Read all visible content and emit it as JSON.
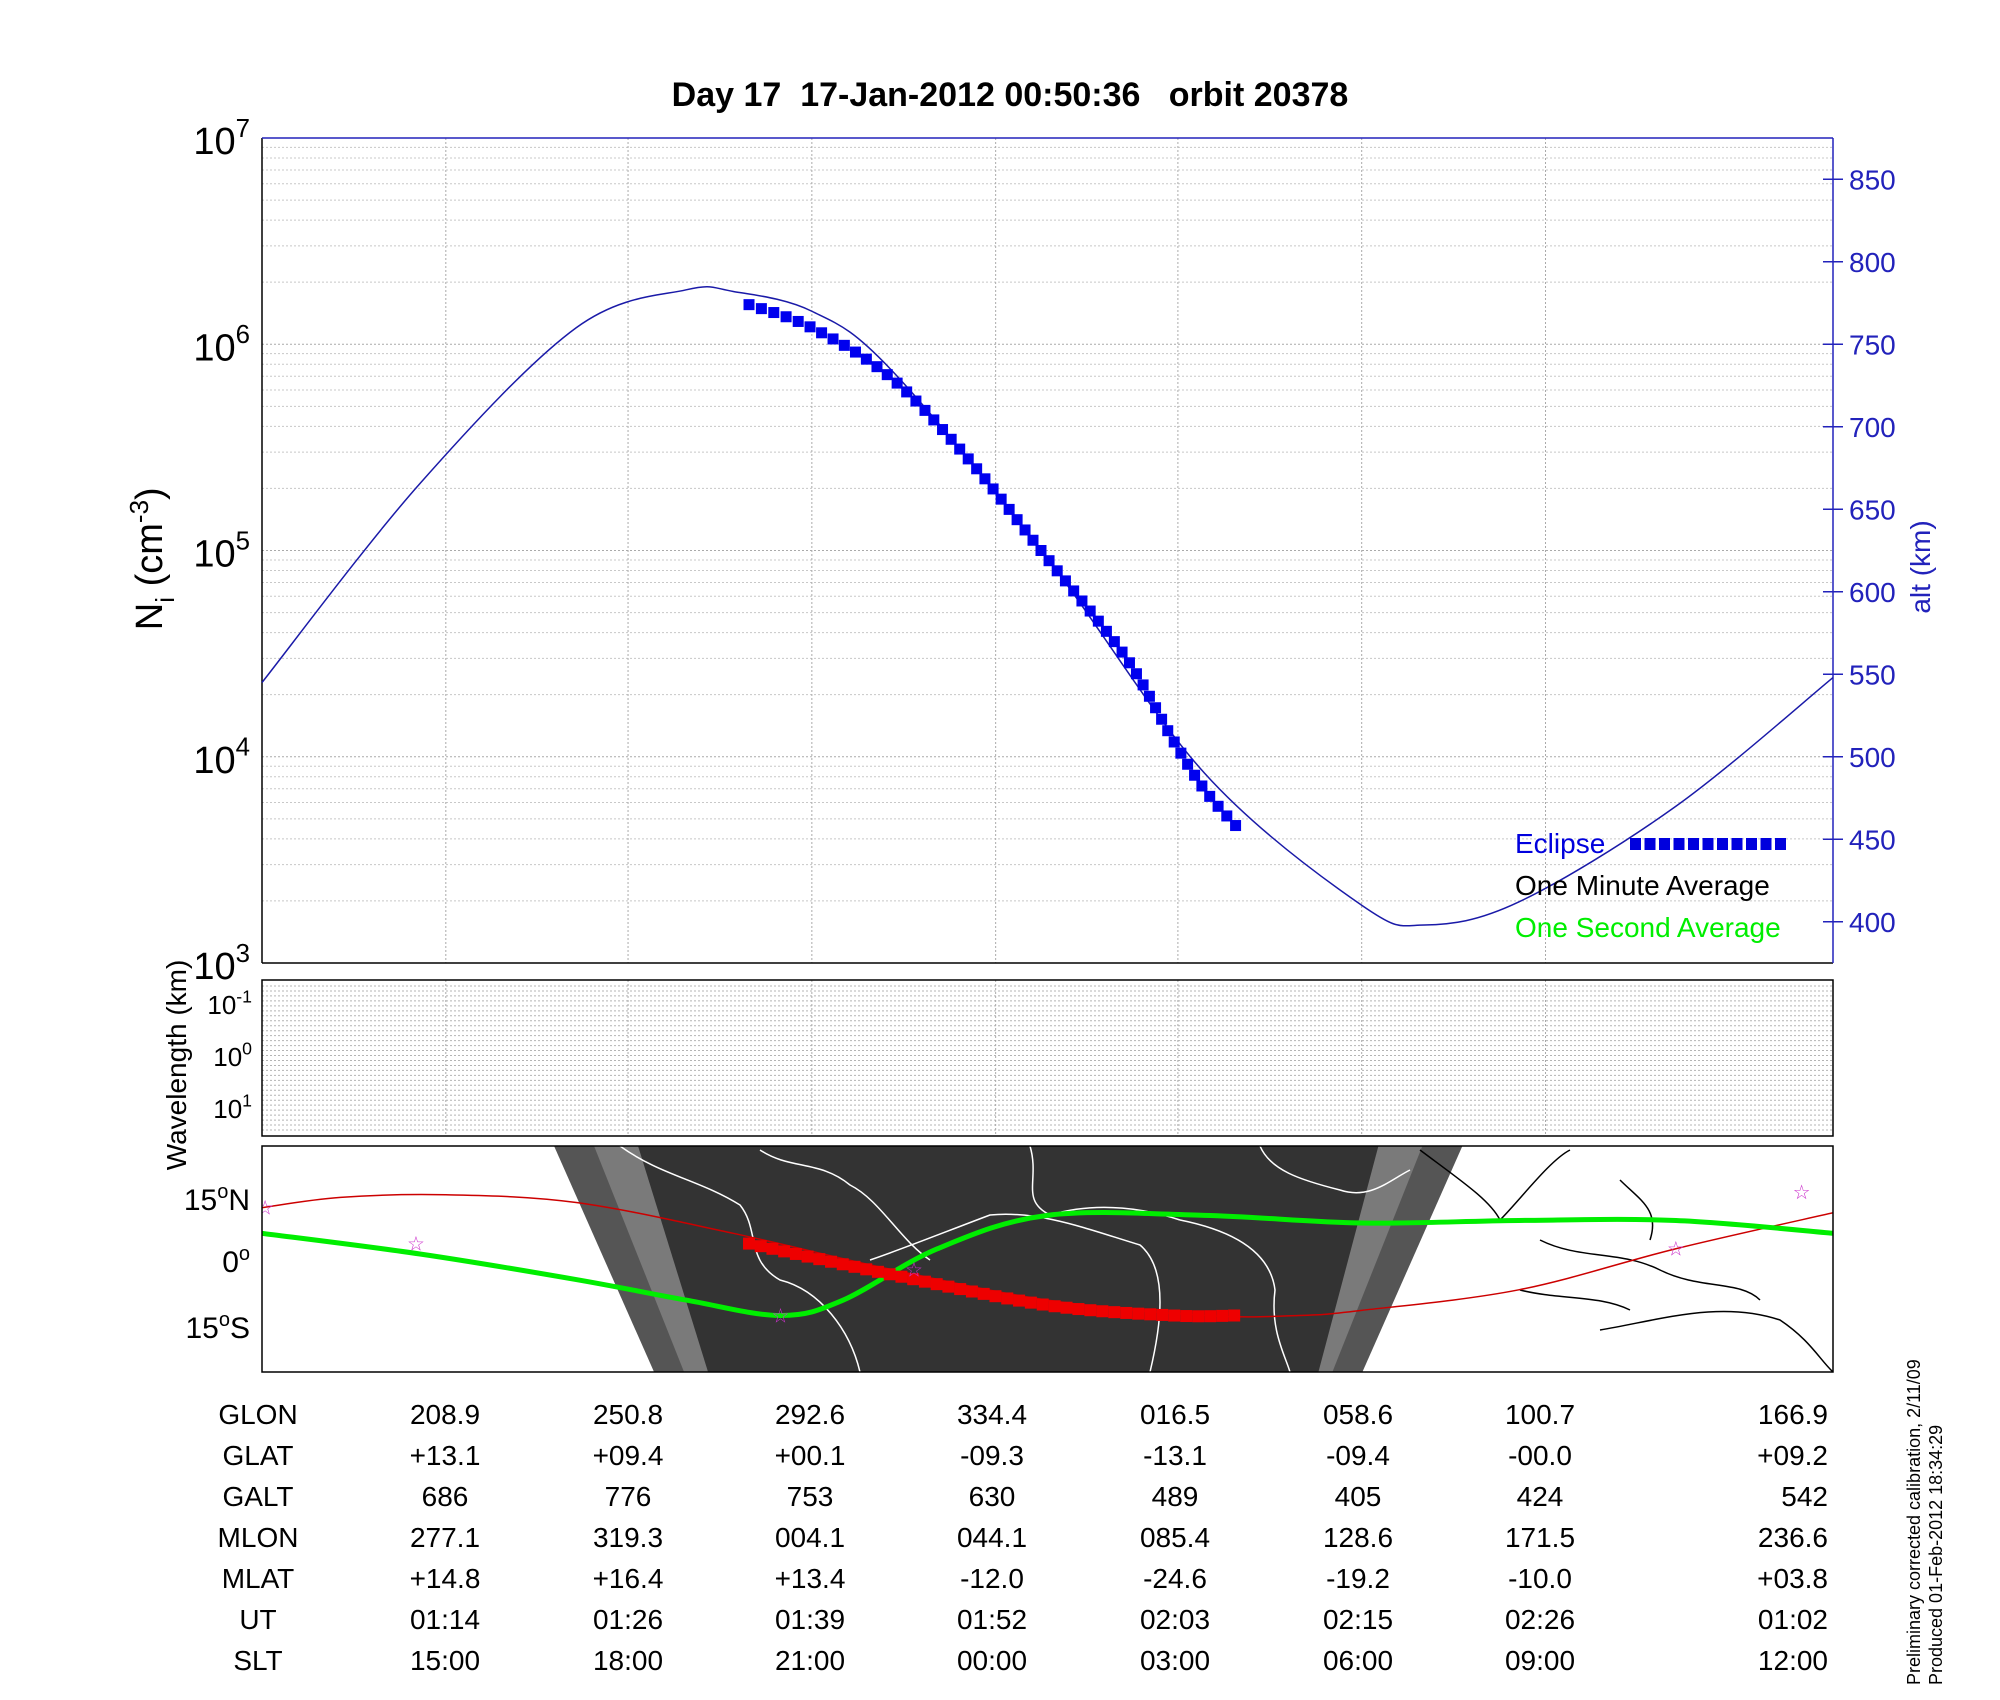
{
  "chart_data": {
    "title": "Day 17  17-Jan-2012 00:50:36   orbit 20378",
    "footnote": [
      "Preliminary corrected calibration, 2/11/09",
      "Produced 01-Feb-2012 18:34:29"
    ],
    "panels": [
      {
        "type": "line",
        "ylabel_left": "N",
        "ylabel_left_sub": "i",
        "ylabel_left_unit": "(cm",
        "ylabel_left_unit_sup": "-3",
        "ylabel_left_close": ")",
        "yscale_left": "log",
        "ylim_left": [
          1000,
          10000000
        ],
        "yticks_left": [
          {
            "base": "10",
            "exp": "3"
          },
          {
            "base": "10",
            "exp": "4"
          },
          {
            "base": "10",
            "exp": "5"
          },
          {
            "base": "10",
            "exp": "6"
          },
          {
            "base": "10",
            "exp": "7"
          }
        ],
        "ylabel_right": "alt (km)",
        "ylim_right": [
          375,
          875
        ],
        "yticks_right": [
          400,
          450,
          500,
          550,
          600,
          650,
          700,
          750,
          800,
          850
        ],
        "xlim": [
          0,
          1
        ],
        "xticks": [
          0.117,
          0.233,
          0.35,
          0.467,
          0.583,
          0.7,
          0.817
        ],
        "series": [
          {
            "name": "Altitude",
            "color": "#1a1aa8",
            "axis": "right",
            "x": [
              0,
              0.1,
              0.2,
              0.27,
              0.3,
              0.35,
              0.4,
              0.5,
              0.6,
              0.7,
              0.74,
              0.8,
              0.9,
              1.0
            ],
            "y": [
              545,
              665,
              760,
              783,
              782,
              770,
              735,
              620,
              490,
              410,
              398,
              412,
              470,
              548
            ]
          },
          {
            "name": "Eclipse",
            "color": "#0000ee",
            "axis": "right",
            "x": [
              0.31,
              0.35,
              0.4,
              0.45,
              0.5,
              0.55,
              0.58,
              0.6,
              0.62
            ],
            "y": [
              774,
              760,
              730,
              680,
              620,
              560,
              510,
              480,
              458
            ]
          }
        ],
        "legend": {
          "position": "bottom-right",
          "entries": [
            {
              "name": "Eclipse",
              "color": "#0000dd"
            },
            {
              "name": "One Minute Average",
              "color": "#000000"
            },
            {
              "name": "One Second Average",
              "color": "#00ee00"
            }
          ]
        }
      },
      {
        "type": "heatmap",
        "ylabel": "Wavelength (km)",
        "yscale": "log",
        "yticks": [
          {
            "base": "10",
            "exp": "-1"
          },
          {
            "base": "10",
            "exp": "0"
          },
          {
            "base": "10",
            "exp": "1"
          }
        ],
        "grid": true
      },
      {
        "type": "map",
        "yticks": [
          {
            "deg": "15",
            "sym": "o",
            "hemi": "N"
          },
          {
            "deg": "0",
            "sym": "o",
            "hemi": ""
          },
          {
            "deg": "15",
            "sym": "o",
            "hemi": "S"
          }
        ],
        "ylim": [
          -22,
          22
        ],
        "series": [
          {
            "name": "Magnetic equator",
            "color": "#cc0000",
            "x": [
              0,
              0.05,
              0.117,
              0.2,
              0.3,
              0.4,
              0.5,
              0.6,
              0.66,
              0.7,
              0.8,
              0.9,
              1.0
            ],
            "y": [
              10,
              12,
              12.5,
              11,
              5,
              -2,
              -8,
              -11,
              -11,
              -10,
              -6,
              2,
              9
            ]
          },
          {
            "name": "Satellite track",
            "color": "#00ee00",
            "x": [
              0,
              0.1,
              0.2,
              0.27,
              0.33,
              0.37,
              0.43,
              0.5,
              0.6,
              0.7,
              0.8,
              0.9,
              1.0
            ],
            "y": [
              5,
              1,
              -4,
              -8,
              -11,
              -8,
              2,
              8.5,
              8.5,
              7,
              7.5,
              7.5,
              5
            ]
          },
          {
            "name": "Eclipse segment",
            "color": "#ee0000",
            "x": [
              0.31,
              0.4,
              0.5,
              0.58,
              0.62
            ],
            "y": [
              3,
              -3,
              -9,
              -11,
              -11
            ]
          }
        ],
        "markers": [
          {
            "x": 0.002,
            "y": 10
          },
          {
            "x": 0.098,
            "y": 3
          },
          {
            "x": 0.33,
            "y": -11
          },
          {
            "x": 0.415,
            "y": -2
          },
          {
            "x": 0.9,
            "y": 2
          },
          {
            "x": 0.98,
            "y": 13
          }
        ],
        "night_band": {
          "x_core": [
            0.233,
            0.717
          ],
          "x_outer": [
            0.205,
            0.745
          ]
        }
      }
    ],
    "table": {
      "row_labels": [
        "GLON",
        "GLAT",
        "GALT",
        "MLON",
        "MLAT",
        "UT",
        "SLT"
      ],
      "columns": [
        [
          "208.9",
          "+13.1",
          "686",
          "277.1",
          "+14.8",
          "01:14",
          "15:00"
        ],
        [
          "250.8",
          "+09.4",
          "776",
          "319.3",
          "+16.4",
          "01:26",
          "18:00"
        ],
        [
          "292.6",
          "+00.1",
          "753",
          "004.1",
          "+13.4",
          "01:39",
          "21:00"
        ],
        [
          "334.4",
          "-09.3",
          "630",
          "044.1",
          "-12.0",
          "01:52",
          "00:00"
        ],
        [
          "016.5",
          "-13.1",
          "489",
          "085.4",
          "-24.6",
          "02:03",
          "03:00"
        ],
        [
          "058.6",
          "-09.4",
          "405",
          "128.6",
          "-19.2",
          "02:15",
          "06:00"
        ],
        [
          "100.7",
          "-00.0",
          "424",
          "171.5",
          "-10.0",
          "02:26",
          "09:00"
        ],
        [
          "166.9",
          "+09.2",
          "542",
          "236.6",
          "+03.8",
          "01:02",
          "12:00"
        ]
      ]
    }
  }
}
